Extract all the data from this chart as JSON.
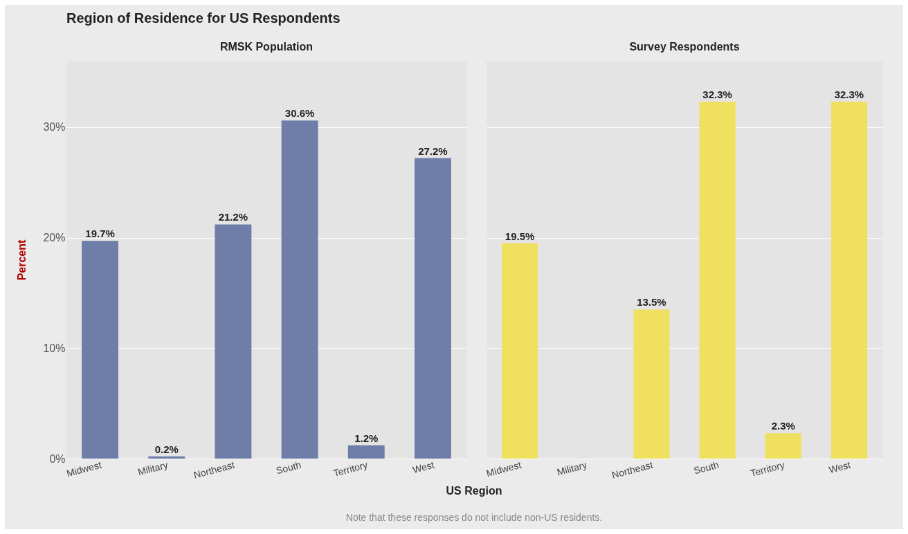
{
  "chart_data": [
    {
      "type": "bar",
      "title": "Region of Residence for US Respondents",
      "subtitle": "RMSK Population",
      "xlabel": "US Region",
      "ylabel": "Percent",
      "annotations": [
        "Note that these responses do not include non-US residents."
      ],
      "categories": [
        "Midwest",
        "Military",
        "Northeast",
        "South",
        "Territory",
        "West"
      ],
      "values": [
        19.7,
        0.2,
        21.2,
        30.6,
        1.2,
        27.2
      ],
      "color": "#6e7ea8",
      "value_labels": [
        "19.7%",
        "0.2%",
        "21.2%",
        "30.6%",
        "1.2%",
        "27.2%"
      ],
      "ylim": [
        0,
        36
      ],
      "yticks": [
        {
          "value": 0,
          "label": "0%"
        },
        {
          "value": 10,
          "label": "10%"
        },
        {
          "value": 20,
          "label": "20%"
        },
        {
          "value": 30,
          "label": "30%"
        }
      ],
      "grid": "y"
    },
    {
      "type": "bar",
      "subtitle": "Survey Respondents",
      "categories": [
        "Midwest",
        "Military",
        "Northeast",
        "South",
        "Territory",
        "West"
      ],
      "values": [
        19.5,
        0,
        13.5,
        32.3,
        2.3,
        32.3
      ],
      "color": "#f0e060",
      "value_labels": [
        "19.5%",
        null,
        "13.5%",
        "32.3%",
        "2.3%",
        "32.3%"
      ],
      "ylim": [
        0,
        36
      ],
      "yticks": [
        0,
        10,
        20,
        30
      ],
      "grid": "y",
      "tick_labels": "x"
    }
  ]
}
